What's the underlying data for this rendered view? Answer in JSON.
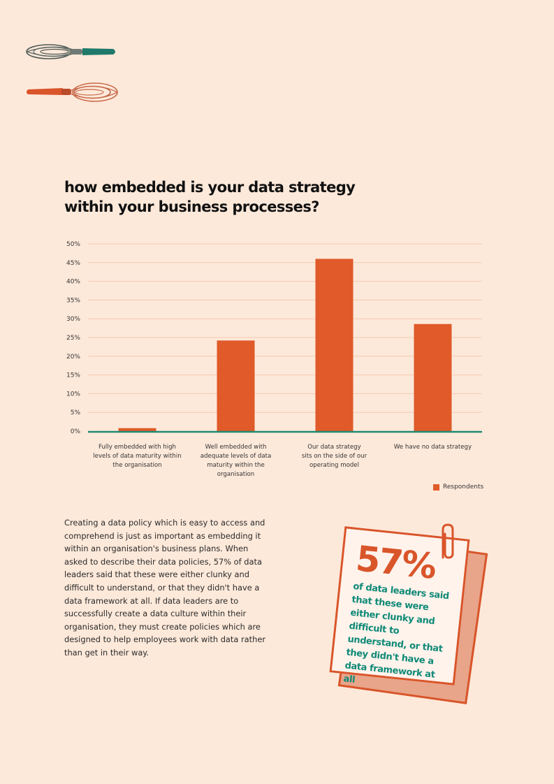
{
  "colors": {
    "background": "#FDE9DA",
    "bar": "#E05A2A",
    "baseline": "#1F8C73",
    "gridline": "#F4C9B2",
    "note_accent": "#D9552A",
    "note_text": "#0F8A77"
  },
  "icons": [
    "whisk-green-icon",
    "whisk-red-icon",
    "paperclip-icon"
  ],
  "chart_data": {
    "type": "bar",
    "title": "how embedded is your data strategy within your business processes?",
    "categories": [
      "Fully embedded with high levels of data maturity within the organisation",
      "Well embedded with adequate levels of data maturity within the organisation",
      "Our data strategy sits on the side of our operating model",
      "We have no data strategy"
    ],
    "category_lines": [
      [
        "Fully embedded with high",
        "levels of data maturity within",
        "the organisation"
      ],
      [
        "Well embedded with",
        "adequate levels of data",
        "maturity within the",
        "organisation"
      ],
      [
        "Our data strategy",
        "sits on the side of our",
        "operating model"
      ],
      [
        "We have no data strategy"
      ]
    ],
    "series": [
      {
        "name": "Respondents",
        "values": [
          0.8,
          24.2,
          46.0,
          28.6
        ]
      }
    ],
    "ylim": [
      0,
      50
    ],
    "yticks": [
      "0%",
      "5%",
      "10%",
      "15%",
      "20%",
      "25%",
      "30%",
      "35%",
      "40%",
      "45%",
      "50%"
    ],
    "grid": true,
    "legend_position": "bottom-right"
  },
  "body": {
    "paragraph": "Creating a data policy which is easy to access and comprehend is just as important as embedding it within an organisation's business plans. When asked to describe their data policies, 57% of data leaders said that these were either clunky and difficult to understand, or that they didn't have a data framework at all. If data leaders are to successfully create a data culture within their organisation, they must create policies which are designed to help employees work with data rather than get in their way."
  },
  "callout": {
    "percent": "57%",
    "text": "of data leaders said that these were either clunky and difficult to understand, or that they didn't have a data framework at all"
  }
}
